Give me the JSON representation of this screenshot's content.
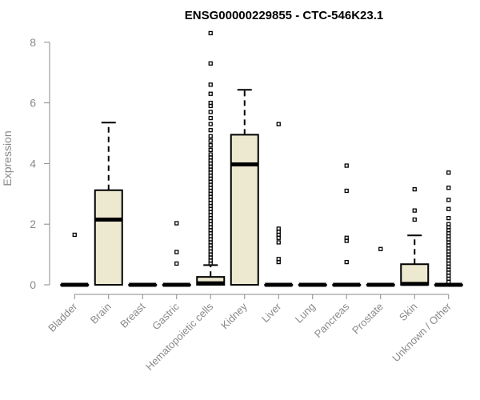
{
  "chart_data": {
    "type": "boxplot",
    "title": "ENSG00000229855 - CTC-546K23.1",
    "ylabel": "Expression",
    "xlabel": "",
    "ylim": [
      0,
      8.2
    ],
    "yticks": [
      0,
      2,
      4,
      6,
      8
    ],
    "box_fill": "#ede8d0",
    "grid": false,
    "categories": [
      "Bladder",
      "Brain",
      "Breast",
      "Gastric",
      "Hematopoietic cells",
      "Kidney",
      "Liver",
      "Lung",
      "Pancreas",
      "Prostate",
      "Skin",
      "Unknown / Other"
    ],
    "boxes": [
      {
        "category": "Bladder",
        "q1": 0,
        "median": 0,
        "q3": 0,
        "whisker_low": 0,
        "whisker_high": 0,
        "outliers": [
          1.65
        ]
      },
      {
        "category": "Brain",
        "q1": 0,
        "median": 2.15,
        "q3": 3.12,
        "whisker_low": 0,
        "whisker_high": 5.35,
        "outliers": []
      },
      {
        "category": "Breast",
        "q1": 0,
        "median": 0,
        "q3": 0,
        "whisker_low": 0,
        "whisker_high": 0,
        "outliers": []
      },
      {
        "category": "Gastric",
        "q1": 0,
        "median": 0,
        "q3": 0,
        "whisker_low": 0,
        "whisker_high": 0,
        "outliers": [
          0.7,
          1.08,
          2.03
        ]
      },
      {
        "category": "Hematopoietic cells",
        "q1": 0,
        "median": 0.05,
        "q3": 0.26,
        "whisker_low": 0,
        "whisker_high": 0.65,
        "outliers": [
          0.7,
          0.8,
          0.9,
          1.0,
          1.1,
          1.2,
          1.3,
          1.4,
          1.5,
          1.6,
          1.7,
          1.8,
          1.9,
          2.0,
          2.1,
          2.2,
          2.3,
          2.4,
          2.5,
          2.6,
          2.7,
          2.8,
          2.9,
          3.0,
          3.1,
          3.2,
          3.3,
          3.4,
          3.5,
          3.6,
          3.7,
          3.8,
          3.9,
          4.0,
          4.1,
          4.2,
          4.3,
          4.45,
          4.6,
          4.75,
          4.9,
          5.1,
          5.3,
          5.5,
          5.7,
          5.9,
          6.0,
          6.3,
          6.6,
          7.3,
          8.3
        ]
      },
      {
        "category": "Kidney",
        "q1": 0,
        "median": 3.97,
        "q3": 4.95,
        "whisker_low": 0,
        "whisker_high": 6.43,
        "outliers": []
      },
      {
        "category": "Liver",
        "q1": 0,
        "median": 0,
        "q3": 0,
        "whisker_low": 0,
        "whisker_high": 0,
        "outliers": [
          0.75,
          0.85,
          1.4,
          1.55,
          1.65,
          1.75,
          1.85,
          5.3
        ]
      },
      {
        "category": "Lung",
        "q1": 0,
        "median": 0,
        "q3": 0,
        "whisker_low": 0,
        "whisker_high": 0,
        "outliers": []
      },
      {
        "category": "Pancreas",
        "q1": 0,
        "median": 0,
        "q3": 0,
        "whisker_low": 0,
        "whisker_high": 0,
        "outliers": [
          0.75,
          1.45,
          1.55,
          3.1,
          3.93
        ]
      },
      {
        "category": "Prostate",
        "q1": 0,
        "median": 0,
        "q3": 0,
        "whisker_low": 0,
        "whisker_high": 0,
        "outliers": [
          1.18
        ]
      },
      {
        "category": "Skin",
        "q1": 0,
        "median": 0.03,
        "q3": 0.68,
        "whisker_low": 0,
        "whisker_high": 1.63,
        "outliers": [
          2.15,
          2.45,
          3.15
        ]
      },
      {
        "category": "Unknown / Other",
        "q1": 0,
        "median": 0,
        "q3": 0,
        "whisker_low": 0,
        "whisker_high": 0,
        "outliers": [
          0.1,
          0.2,
          0.3,
          0.4,
          0.5,
          0.6,
          0.7,
          0.8,
          0.9,
          1.0,
          1.1,
          1.2,
          1.3,
          1.4,
          1.5,
          1.6,
          1.7,
          1.8,
          1.9,
          2.0,
          2.2,
          2.5,
          2.8,
          3.2,
          3.7
        ]
      }
    ]
  }
}
